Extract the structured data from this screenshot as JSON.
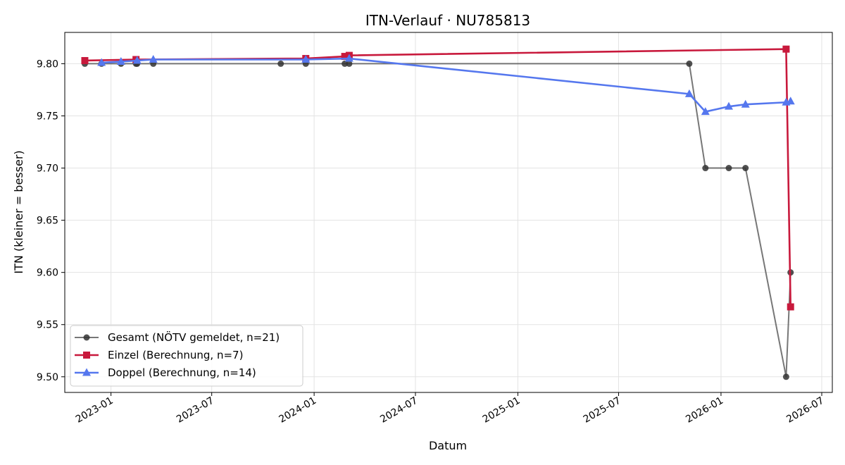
{
  "chart_data": {
    "type": "line",
    "title": "ITN-Verlauf · NU785813",
    "xlabel": "Datum",
    "ylabel": "ITN  (kleiner = besser)",
    "ylim": [
      9.485,
      9.83
    ],
    "xlim": [
      "2022-10-10",
      "2026-07-20"
    ],
    "yticks": [
      9.5,
      9.55,
      9.6,
      9.65,
      9.7,
      9.75,
      9.8
    ],
    "ytick_labels": [
      "9.50",
      "9.55",
      "9.60",
      "9.65",
      "9.70",
      "9.75",
      "9.80"
    ],
    "xticks": [
      "2023-01-01",
      "2023-07-01",
      "2024-01-01",
      "2024-07-01",
      "2025-01-01",
      "2025-07-01",
      "2026-01-01",
      "2026-07-01"
    ],
    "xtick_labels": [
      "2023-01",
      "2023-07",
      "2024-01",
      "2024-07",
      "2025-01",
      "2025-07",
      "2026-01",
      "2026-07"
    ],
    "grid": true,
    "legend_position": "lower-left",
    "series": [
      {
        "name": "Gesamt (NÖTV gemeldet, n=21)",
        "color": "#555555",
        "marker": "circle",
        "points": [
          [
            "2022-11-15",
            9.8
          ],
          [
            "2022-12-15",
            9.8
          ],
          [
            "2023-01-19",
            9.8
          ],
          [
            "2023-02-15",
            9.8
          ],
          [
            "2023-02-17",
            9.8
          ],
          [
            "2023-03-18",
            9.8
          ],
          [
            "2023-11-02",
            9.8
          ],
          [
            "2023-12-17",
            9.8
          ],
          [
            "2024-02-25",
            9.8
          ],
          [
            "2024-03-04",
            9.8
          ],
          [
            "2025-11-05",
            9.8
          ],
          [
            "2025-12-04",
            9.7
          ],
          [
            "2026-01-15",
            9.7
          ],
          [
            "2026-02-14",
            9.7
          ],
          [
            "2026-04-28",
            9.5
          ],
          [
            "2026-05-06",
            9.6
          ]
        ]
      },
      {
        "name": "Einzel (Berechnung, n=7)",
        "color": "#c8193c",
        "marker": "square",
        "points": [
          [
            "2022-11-15",
            9.803
          ],
          [
            "2023-02-15",
            9.804
          ],
          [
            "2023-12-17",
            9.805
          ],
          [
            "2024-02-25",
            9.807
          ],
          [
            "2024-03-04",
            9.808
          ],
          [
            "2026-04-28",
            9.814
          ],
          [
            "2026-05-06",
            9.567
          ]
        ]
      },
      {
        "name": "Doppel (Berechnung, n=14)",
        "color": "#5577ee",
        "marker": "triangle",
        "points": [
          [
            "2022-12-15",
            9.801
          ],
          [
            "2023-01-19",
            9.802
          ],
          [
            "2023-02-17",
            9.803
          ],
          [
            "2023-03-18",
            9.804
          ],
          [
            "2023-12-17",
            9.804
          ],
          [
            "2024-03-04",
            9.805
          ],
          [
            "2025-11-05",
            9.771
          ],
          [
            "2025-12-04",
            9.754
          ],
          [
            "2026-01-15",
            9.759
          ],
          [
            "2026-02-14",
            9.761
          ],
          [
            "2026-04-28",
            9.763
          ],
          [
            "2026-05-06",
            9.764
          ]
        ]
      }
    ]
  }
}
